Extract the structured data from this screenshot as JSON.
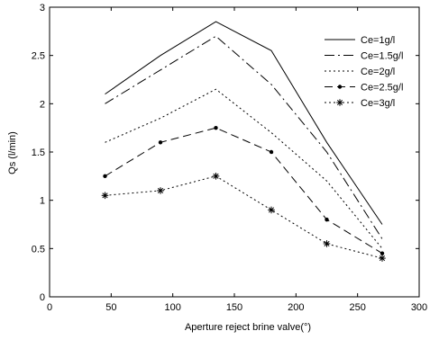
{
  "chart_data": {
    "type": "line",
    "xlabel": "Aperture reject brine valve(°)",
    "ylabel": "Qs (l/min)",
    "xlim": [
      0,
      300
    ],
    "ylim": [
      0,
      3
    ],
    "xticks": [
      0,
      50,
      100,
      150,
      200,
      250,
      300
    ],
    "yticks": [
      0,
      0.5,
      1,
      1.5,
      2,
      2.5,
      3
    ],
    "xtick_labels": [
      "0",
      "50",
      "100",
      "150",
      "200",
      "250",
      "300"
    ],
    "ytick_labels": [
      "0",
      "0.5",
      "1",
      "1.5",
      "2",
      "2.5",
      "3"
    ],
    "grid": false,
    "legend_position": "top-right",
    "x": [
      45,
      90,
      135,
      180,
      225,
      270
    ],
    "series": [
      {
        "name": "Ce=1g/l",
        "values": [
          2.1,
          2.5,
          2.85,
          2.55,
          1.6,
          0.75
        ],
        "dash": "solid",
        "marker": "none"
      },
      {
        "name": "Ce=1.5g/l",
        "values": [
          2.0,
          2.35,
          2.7,
          2.2,
          1.5,
          0.6
        ],
        "dash": "dashdot",
        "marker": "none"
      },
      {
        "name": "Ce=2g/l",
        "values": [
          1.6,
          1.85,
          2.15,
          1.7,
          1.2,
          0.5
        ],
        "dash": "dotted",
        "marker": "none"
      },
      {
        "name": "Ce=2.5g/l",
        "values": [
          1.25,
          1.6,
          1.75,
          1.5,
          0.8,
          0.45
        ],
        "dash": "dashed",
        "marker": "dot"
      },
      {
        "name": "Ce=3g/l",
        "values": [
          1.05,
          1.1,
          1.25,
          0.9,
          0.55,
          0.4
        ],
        "dash": "dotted",
        "marker": "star"
      }
    ]
  }
}
